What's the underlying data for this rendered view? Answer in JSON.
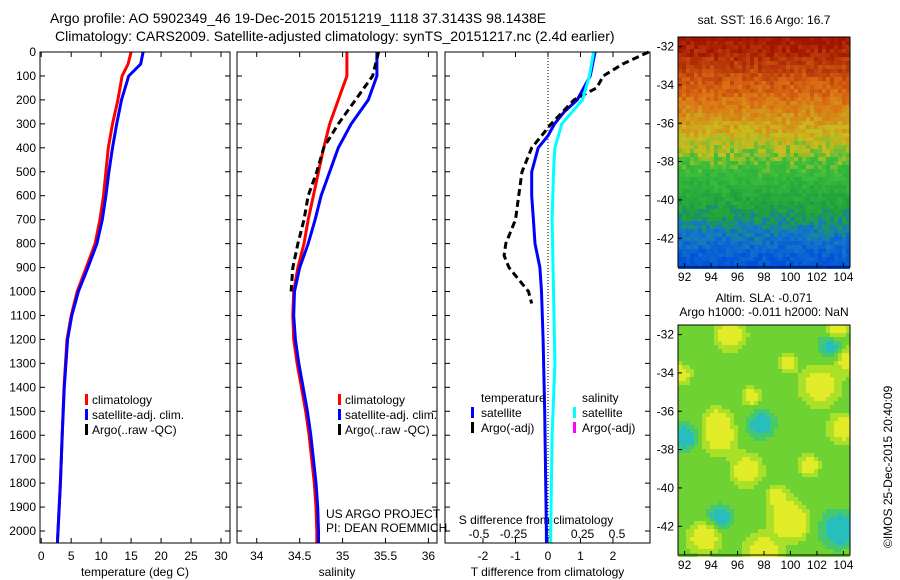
{
  "title_line1": "Argo profile: AO 5902349_46 19-Dec-2015 20151219_1118 37.3143S 98.1438E",
  "title_line2": "Climatology: CARS2009. Satellite-adjusted climatology: synTS_20151217.nc (2.4d earlier)",
  "credit": "US ARGO PROJECT",
  "pi": "PI: DEAN ROEMMICH",
  "stamp": "©IMOS 25-Dec-2015 20:40:09",
  "colors": {
    "clim": "#ff0000",
    "sat": "#0000ff",
    "argo": "#000000",
    "sal_sat": "#00ffff",
    "sal_argo": "#ff00ff"
  },
  "chart_data": [
    {
      "type": "line",
      "xlabel": "temperature (deg C)",
      "xlim": [
        -0.2,
        31.5
      ],
      "ylim": [
        2050,
        0
      ],
      "xticks": [
        0,
        5,
        10,
        15,
        20,
        25,
        30
      ],
      "yticks": [
        0,
        100,
        200,
        300,
        400,
        500,
        600,
        700,
        800,
        900,
        1000,
        1100,
        1200,
        1300,
        1400,
        1500,
        1600,
        1700,
        1800,
        1900,
        2000
      ],
      "legend": [
        "climatology",
        "satellite-adj. clim.",
        "Argo(..raw -QC)"
      ],
      "series": [
        {
          "name": "climatology",
          "color": "clim",
          "depth": [
            0,
            50,
            100,
            200,
            300,
            400,
            500,
            600,
            700,
            800,
            900,
            1000,
            1100,
            1200,
            1400,
            1600,
            1800,
            2000,
            2050
          ],
          "values": [
            15,
            14.5,
            13.5,
            12.8,
            11.9,
            11.2,
            10.8,
            10.4,
            9.8,
            9,
            7.5,
            6,
            5,
            4.3,
            3.8,
            3.5,
            3.2,
            2.8,
            2.7
          ]
        },
        {
          "name": "satellite-adj. clim.",
          "color": "sat",
          "depth": [
            0,
            50,
            100,
            200,
            300,
            400,
            500,
            600,
            700,
            800,
            900,
            1000,
            1100,
            1200,
            1400,
            1600,
            1800,
            2000,
            2050
          ],
          "values": [
            17,
            16.6,
            14.6,
            13.4,
            12.6,
            11.9,
            11.3,
            10.8,
            10.2,
            9.3,
            7.8,
            6.2,
            5.1,
            4.4,
            3.85,
            3.5,
            3.2,
            2.8,
            2.7
          ]
        }
      ]
    },
    {
      "type": "line",
      "xlabel": "salinity",
      "xlim": [
        33.77,
        36.1
      ],
      "ylim": [
        2050,
        0
      ],
      "xticks": [
        34,
        34.5,
        35,
        35.5,
        36
      ],
      "legend": [
        "climatology",
        "satellite-adj. clim.",
        "Argo(..raw -QC)"
      ],
      "series": [
        {
          "name": "climatology",
          "color": "clim",
          "depth": [
            0,
            100,
            150,
            200,
            300,
            400,
            500,
            600,
            700,
            800,
            900,
            1000,
            1100,
            1200,
            1300,
            1400,
            1500,
            1600,
            1700,
            1800,
            1900,
            2000,
            2050
          ],
          "values": [
            35.05,
            35.05,
            35,
            34.95,
            34.85,
            34.78,
            34.72,
            34.66,
            34.6,
            34.55,
            34.48,
            34.43,
            34.42,
            34.43,
            34.47,
            34.52,
            34.57,
            34.61,
            34.64,
            34.67,
            34.69,
            34.7,
            34.7
          ]
        },
        {
          "name": "satellite-adj. clim.",
          "color": "sat",
          "depth": [
            0,
            100,
            200,
            300,
            400,
            500,
            600,
            700,
            800,
            900,
            1000,
            1100,
            1200,
            1300,
            1400,
            1500,
            1600,
            1700,
            1800,
            1900,
            2000,
            2050
          ],
          "values": [
            35.4,
            35.4,
            35.3,
            35.1,
            34.95,
            34.85,
            34.75,
            34.68,
            34.6,
            34.5,
            34.44,
            34.43,
            34.45,
            34.49,
            34.54,
            34.59,
            34.63,
            34.66,
            34.69,
            34.71,
            34.72,
            34.72
          ]
        },
        {
          "name": "Argo(..raw -QC)",
          "color": "argo",
          "dash": true,
          "depth": [
            0,
            100,
            200,
            300,
            400,
            500,
            600,
            700,
            800,
            900,
            1000
          ],
          "values": [
            35.42,
            35.35,
            35.15,
            34.95,
            34.78,
            34.7,
            34.6,
            34.55,
            34.48,
            34.42,
            34.4
          ]
        }
      ]
    },
    {
      "type": "line",
      "xlabel": "T difference from climatology",
      "x2label": "S difference from climatology",
      "xlim": [
        -3.17,
        3.14
      ],
      "ylim": [
        2050,
        0
      ],
      "xticks": [
        -2,
        -1,
        0,
        1,
        2
      ],
      "x2ticks": [
        -0.5,
        -0.25,
        0,
        0.25,
        0.5
      ],
      "x2scale": 4.25,
      "legend_t": [
        "temperature",
        "satellite",
        "Argo(-adj)"
      ],
      "legend_s": [
        "salinity",
        "satellite",
        "Argo(-adj)"
      ],
      "series": [
        {
          "name": "T satellite",
          "color": "sat",
          "depth": [
            0,
            100,
            200,
            250,
            300,
            350,
            400,
            500,
            600,
            700,
            800,
            900,
            1000,
            1200,
            1500,
            2000,
            2050
          ],
          "values": [
            1.45,
            1.3,
            0.9,
            0.5,
            0.2,
            0,
            -0.3,
            -0.5,
            -0.5,
            -0.45,
            -0.4,
            -0.25,
            -0.2,
            -0.15,
            -0.1,
            -0.05,
            -0.05
          ]
        },
        {
          "name": "T Argo(-adj)",
          "color": "argo",
          "dash": true,
          "depth": [
            0,
            50,
            100,
            150,
            200,
            300,
            400,
            500,
            600,
            700,
            800,
            850,
            900,
            1000,
            1050
          ],
          "values": [
            3.1,
            2.3,
            1.7,
            1.5,
            0.8,
            0.1,
            -0.5,
            -0.8,
            -0.9,
            -1.0,
            -1.3,
            -1.35,
            -1.2,
            -0.6,
            -0.5
          ]
        },
        {
          "name": "S satellite",
          "color": "sal_sat",
          "salinity": true,
          "depth": [
            0,
            100,
            200,
            300,
            400,
            500,
            700,
            1000,
            1300,
            1600,
            2000,
            2050
          ],
          "values": [
            0.33,
            0.3,
            0.25,
            0.1,
            0.05,
            0.04,
            0.03,
            0.04,
            0.05,
            0.03,
            0.02,
            0.02
          ]
        }
      ]
    },
    {
      "type": "heatmap",
      "title": "sat. SST: 16.6  Argo: 16.7",
      "xticks": [
        92,
        94,
        96,
        98,
        100,
        102,
        104
      ],
      "yticks": [
        -32,
        -34,
        -36,
        -38,
        -40,
        -42
      ],
      "xlim": [
        91.5,
        104.5
      ],
      "ylim": [
        -43.5,
        -31.5
      ]
    },
    {
      "type": "heatmap",
      "title": "Altim. SLA: -0.071",
      "subtitle": "Argo h1000: -0.011 h2000: NaN",
      "xticks": [
        92,
        94,
        96,
        98,
        100,
        102,
        104
      ],
      "yticks": [
        -32,
        -34,
        -36,
        -38,
        -40,
        -42
      ],
      "xlim": [
        91.5,
        104.5
      ],
      "ylim": [
        -43.5,
        -31.5
      ]
    }
  ]
}
